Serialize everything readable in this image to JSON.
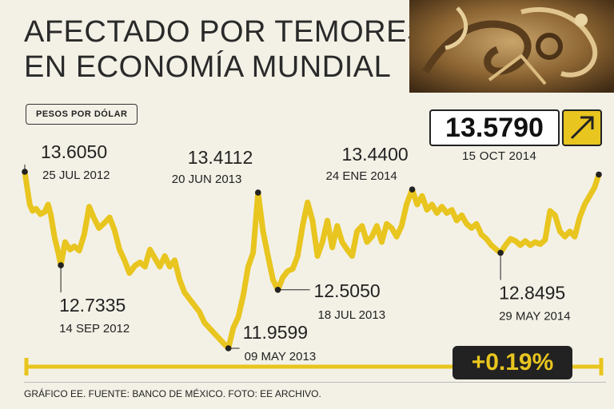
{
  "title_lines": [
    "AFECTADO POR TEMORES",
    "EN ECONOMÍA MUNDIAL"
  ],
  "unit_label": "PESOS POR DÓLAR",
  "current": {
    "value": "13.5790",
    "date": "15 OCT 2014",
    "arrow_icon": "arrow-up-right-icon"
  },
  "change": "+0.19%",
  "footer": "GRÁFICO EE. FUENTE: BANCO DE MÉXICO. FOTO: EE ARCHIVO.",
  "colors": {
    "line": "#e8c51f",
    "background": "#f3f1e6",
    "text": "#222222"
  },
  "chart_data": {
    "type": "line",
    "x_range": [
      "2012-07-25",
      "2014-10-15"
    ],
    "ylim": [
      11.9,
      13.7
    ],
    "series": [
      {
        "values": [
          [
            "2012-07-25",
            13.605
          ],
          [
            "2012-07-28",
            13.47
          ],
          [
            "2012-08-01",
            13.3
          ],
          [
            "2012-08-05",
            13.24
          ],
          [
            "2012-08-10",
            13.26
          ],
          [
            "2012-08-16",
            13.21
          ],
          [
            "2012-08-22",
            13.23
          ],
          [
            "2012-08-27",
            13.3
          ],
          [
            "2012-08-31",
            13.2
          ],
          [
            "2012-09-05",
            13.0
          ],
          [
            "2012-09-10",
            12.86
          ],
          [
            "2012-09-14",
            12.7335
          ],
          [
            "2012-09-20",
            12.95
          ],
          [
            "2012-09-27",
            12.88
          ],
          [
            "2012-10-03",
            12.91
          ],
          [
            "2012-10-10",
            12.87
          ],
          [
            "2012-10-17",
            13.02
          ],
          [
            "2012-10-24",
            13.28
          ],
          [
            "2012-10-31",
            13.17
          ],
          [
            "2012-11-07",
            13.08
          ],
          [
            "2012-11-15",
            13.13
          ],
          [
            "2012-11-22",
            13.18
          ],
          [
            "2012-11-29",
            13.06
          ],
          [
            "2012-12-06",
            12.88
          ],
          [
            "2012-12-13",
            12.78
          ],
          [
            "2012-12-20",
            12.66
          ],
          [
            "2012-12-28",
            12.73
          ],
          [
            "2013-01-04",
            12.76
          ],
          [
            "2013-01-11",
            12.72
          ],
          [
            "2013-01-18",
            12.88
          ],
          [
            "2013-01-25",
            12.8
          ],
          [
            "2013-02-01",
            12.72
          ],
          [
            "2013-02-08",
            12.82
          ],
          [
            "2013-02-15",
            12.72
          ],
          [
            "2013-02-22",
            12.78
          ],
          [
            "2013-03-01",
            12.6
          ],
          [
            "2013-03-08",
            12.48
          ],
          [
            "2013-03-15",
            12.42
          ],
          [
            "2013-03-22",
            12.36
          ],
          [
            "2013-03-29",
            12.3
          ],
          [
            "2013-04-05",
            12.2
          ],
          [
            "2013-04-12",
            12.15
          ],
          [
            "2013-04-19",
            12.1
          ],
          [
            "2013-04-26",
            12.05
          ],
          [
            "2013-05-03",
            12.0
          ],
          [
            "2013-05-09",
            11.9599
          ],
          [
            "2013-05-16",
            12.15
          ],
          [
            "2013-05-23",
            12.25
          ],
          [
            "2013-05-30",
            12.45
          ],
          [
            "2013-06-06",
            12.72
          ],
          [
            "2013-06-13",
            12.85
          ],
          [
            "2013-06-20",
            13.4112
          ],
          [
            "2013-06-27",
            13.05
          ],
          [
            "2013-07-04",
            12.82
          ],
          [
            "2013-07-11",
            12.6
          ],
          [
            "2013-07-18",
            12.505
          ],
          [
            "2013-07-25",
            12.62
          ],
          [
            "2013-08-01",
            12.68
          ],
          [
            "2013-08-08",
            12.7
          ],
          [
            "2013-08-15",
            12.82
          ],
          [
            "2013-08-22",
            13.1
          ],
          [
            "2013-08-29",
            13.32
          ],
          [
            "2013-09-05",
            13.15
          ],
          [
            "2013-09-12",
            12.82
          ],
          [
            "2013-09-19",
            12.95
          ],
          [
            "2013-09-26",
            13.15
          ],
          [
            "2013-10-03",
            12.9
          ],
          [
            "2013-10-10",
            13.1
          ],
          [
            "2013-10-17",
            12.95
          ],
          [
            "2013-10-24",
            12.88
          ],
          [
            "2013-10-31",
            12.82
          ],
          [
            "2013-11-07",
            13.05
          ],
          [
            "2013-11-14",
            13.1
          ],
          [
            "2013-11-21",
            12.95
          ],
          [
            "2013-11-28",
            13.0
          ],
          [
            "2013-12-05",
            13.1
          ],
          [
            "2013-12-12",
            12.95
          ],
          [
            "2013-12-19",
            13.12
          ],
          [
            "2013-12-26",
            13.08
          ],
          [
            "2014-01-02",
            13.0
          ],
          [
            "2014-01-09",
            13.1
          ],
          [
            "2014-01-16",
            13.3
          ],
          [
            "2014-01-24",
            13.44
          ],
          [
            "2014-01-31",
            13.3
          ],
          [
            "2014-02-07",
            13.38
          ],
          [
            "2014-02-14",
            13.25
          ],
          [
            "2014-02-21",
            13.3
          ],
          [
            "2014-02-28",
            13.22
          ],
          [
            "2014-03-07",
            13.28
          ],
          [
            "2014-03-14",
            13.22
          ],
          [
            "2014-03-21",
            13.25
          ],
          [
            "2014-03-28",
            13.15
          ],
          [
            "2014-04-04",
            13.2
          ],
          [
            "2014-04-11",
            13.12
          ],
          [
            "2014-04-18",
            13.08
          ],
          [
            "2014-04-25",
            13.12
          ],
          [
            "2014-05-02",
            13.02
          ],
          [
            "2014-05-09",
            12.98
          ],
          [
            "2014-05-16",
            12.92
          ],
          [
            "2014-05-23",
            12.88
          ],
          [
            "2014-05-29",
            12.8495
          ],
          [
            "2014-06-05",
            12.92
          ],
          [
            "2014-06-12",
            12.98
          ],
          [
            "2014-06-19",
            12.96
          ],
          [
            "2014-06-26",
            12.92
          ],
          [
            "2014-07-03",
            12.96
          ],
          [
            "2014-07-10",
            12.92
          ],
          [
            "2014-07-17",
            12.95
          ],
          [
            "2014-07-24",
            12.93
          ],
          [
            "2014-07-31",
            12.97
          ],
          [
            "2014-08-07",
            13.24
          ],
          [
            "2014-08-14",
            13.2
          ],
          [
            "2014-08-21",
            13.05
          ],
          [
            "2014-08-28",
            13.0
          ],
          [
            "2014-09-04",
            13.05
          ],
          [
            "2014-09-11",
            13.0
          ],
          [
            "2014-09-18",
            13.18
          ],
          [
            "2014-09-25",
            13.3
          ],
          [
            "2014-10-02",
            13.38
          ],
          [
            "2014-10-09",
            13.46
          ],
          [
            "2014-10-15",
            13.579
          ]
        ]
      }
    ],
    "annotations": [
      {
        "value": "13.6050",
        "date": "25 JUL 2012",
        "x": "2012-07-25",
        "y": 13.605,
        "label_pos": "right"
      },
      {
        "value": "12.7335",
        "date": "14 SEP 2012",
        "x": "2012-09-14",
        "y": 12.7335,
        "label_pos": "below-right"
      },
      {
        "value": "13.4112",
        "date": "20 JUN 2013",
        "x": "2013-06-20",
        "y": 13.4112,
        "label_pos": "above-left"
      },
      {
        "value": "11.9599",
        "date": "09 MAY 2013",
        "x": "2013-05-09",
        "y": 11.9599,
        "label_pos": "right"
      },
      {
        "value": "12.5050",
        "date": "18 JUL 2013",
        "x": "2013-07-18",
        "y": 12.505,
        "label_pos": "right"
      },
      {
        "value": "13.4400",
        "date": "24 ENE 2014",
        "x": "2014-01-24",
        "y": 13.44,
        "label_pos": "above-left"
      },
      {
        "value": "12.8495",
        "date": "29 MAY 2014",
        "x": "2014-05-29",
        "y": 12.8495,
        "label_pos": "below-right"
      },
      {
        "value": "13.5790",
        "date": "15 OCT 2014",
        "x": "2014-10-15",
        "y": 13.579,
        "label_pos": "boxed"
      }
    ]
  }
}
